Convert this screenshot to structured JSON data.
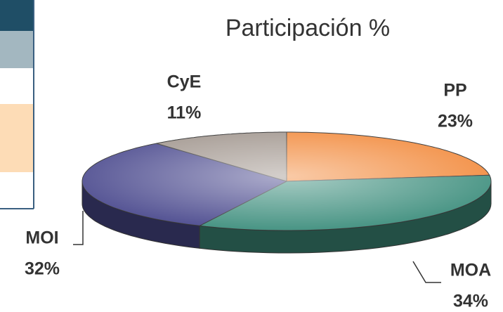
{
  "chart_data": {
    "type": "pie",
    "title": "Participación %",
    "categories": [
      "PP",
      "MOA",
      "MOI",
      "CyE"
    ],
    "values": [
      23,
      34,
      32,
      11
    ],
    "value_labels": [
      "23%",
      "34%",
      "32%",
      "11%"
    ],
    "colors": [
      "#f28a3c",
      "#3f8f7e",
      "#4b4a8e",
      "#a0958d"
    ]
  }
}
